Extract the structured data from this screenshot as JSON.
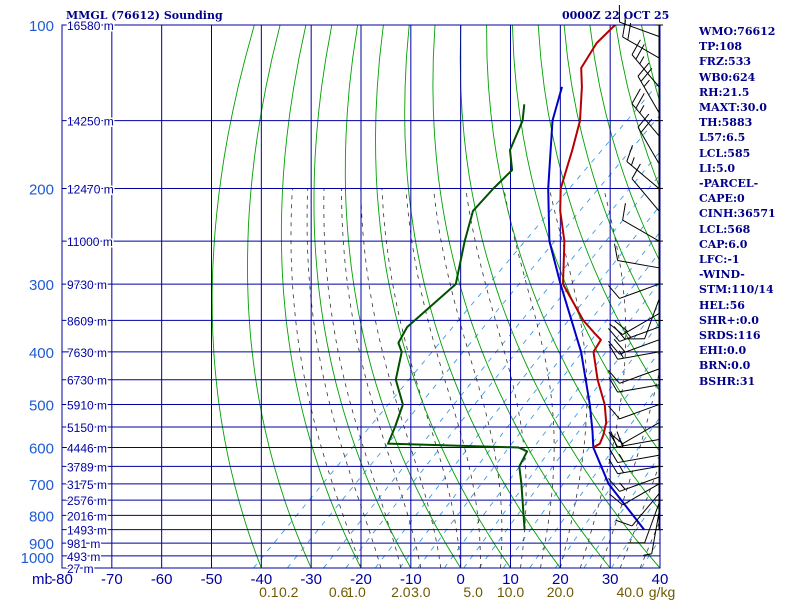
{
  "header": {
    "station": "MMGL (76612) Sounding",
    "time": "0000Z 22 OCT 25"
  },
  "stats": [
    "WMO:76612",
    "TP:108",
    "FRZ:533",
    "WB0:624",
    "RH:21.5",
    "MAXT:30.0",
    "TH:5883",
    "L57:6.5",
    "LCL:585",
    "LI:5.0",
    "-PARCEL-",
    "CAPE:0",
    "CINH:36571",
    "LCL:568",
    "CAP:6.0",
    "LFC:-1",
    "-WIND-",
    "STM:110/14",
    "HEL:56",
    "SHR+:0.0",
    "SRDS:116",
    "EHI:0.0",
    "BRN:0.0",
    "BSHR:31"
  ],
  "colors": {
    "grid": "#0000a0",
    "pressure_labels": "#1e5ad2",
    "dry_adiabat": "#00a000",
    "moist_adiabat": "#333333",
    "mixing_ratio": "#3c9be6",
    "temperature": "#b40000",
    "dewpoint": "#005000",
    "parcel": "#0000c8",
    "mixing_labels": "#6e5a00",
    "wind": "#000000"
  },
  "chart_data": {
    "type": "skew-t",
    "temperature_axis_label": "mb",
    "temperature_ticks": [
      "-80",
      "-70",
      "-60",
      "-50",
      "-40",
      "-30",
      "-20",
      "-10",
      "0",
      "10",
      "20",
      "30",
      "40"
    ],
    "temperature_range": [
      -80,
      40
    ],
    "pressure_range": [
      100,
      1000
    ],
    "pressure_ticks": [
      100,
      200,
      300,
      400,
      500,
      600,
      700,
      800,
      900,
      1000
    ],
    "isobar_levels": [
      100,
      150,
      200,
      250,
      300,
      350,
      400,
      450,
      500,
      550,
      600,
      650,
      700,
      750,
      800,
      850,
      900,
      950,
      1000
    ],
    "height_labels": [
      {
        "p": 100,
        "label": "16580 m"
      },
      {
        "p": 150,
        "label": "14250 m"
      },
      {
        "p": 200,
        "label": "12470 m"
      },
      {
        "p": 250,
        "label": "11000 m"
      },
      {
        "p": 300,
        "label": "9730 m"
      },
      {
        "p": 350,
        "label": "8609 m"
      },
      {
        "p": 400,
        "label": "7630 m"
      },
      {
        "p": 450,
        "label": "6730 m"
      },
      {
        "p": 500,
        "label": "5910 m"
      },
      {
        "p": 550,
        "label": "5150 m"
      },
      {
        "p": 600,
        "label": "4446 m"
      },
      {
        "p": 650,
        "label": "3789 m"
      },
      {
        "p": 700,
        "label": "3175 m"
      },
      {
        "p": 750,
        "label": "2576 m"
      },
      {
        "p": 800,
        "label": "2016 m"
      },
      {
        "p": 850,
        "label": "1493 m"
      },
      {
        "p": 900,
        "label": "981 m"
      },
      {
        "p": 950,
        "label": "493 m"
      },
      {
        "p": 1000,
        "label": "27 m"
      }
    ],
    "mixing_ratio_labels": [
      {
        "value": "0.1",
        "t": -38.5
      },
      {
        "value": "0.2",
        "t": -34.5
      },
      {
        "value": "0.6",
        "t": -24.5
      },
      {
        "value": "1.0",
        "t": -21
      },
      {
        "value": "2.0",
        "t": -12
      },
      {
        "value": "3.0",
        "t": -8
      },
      {
        "value": "5.0",
        "t": 2.5
      },
      {
        "value": "10.0",
        "t": 10
      },
      {
        "value": "20.0",
        "t": 20
      },
      {
        "value": "40.0",
        "t": 34
      }
    ],
    "mixing_units": "g/kg",
    "temperature": [
      {
        "p": 100,
        "t": -80.0
      },
      {
        "p": 108,
        "t": -80.0
      },
      {
        "p": 120,
        "t": -78.0
      },
      {
        "p": 130,
        "t": -74.0
      },
      {
        "p": 150,
        "t": -67.5
      },
      {
        "p": 170,
        "t": -63.0
      },
      {
        "p": 200,
        "t": -57.5
      },
      {
        "p": 220,
        "t": -53.0
      },
      {
        "p": 250,
        "t": -46.0
      },
      {
        "p": 300,
        "t": -37.5
      },
      {
        "p": 350,
        "t": -26.0
      },
      {
        "p": 370,
        "t": -21.0
      },
      {
        "p": 380,
        "t": -18.5
      },
      {
        "p": 400,
        "t": -17.5
      },
      {
        "p": 450,
        "t": -11.0
      },
      {
        "p": 500,
        "t": -4.5
      },
      {
        "p": 540,
        "t": -0.5
      },
      {
        "p": 570,
        "t": 1.5
      },
      {
        "p": 590,
        "t": 2.5
      },
      {
        "p": 600,
        "t": 2.0
      }
    ],
    "dewpoint": [
      {
        "p": 140,
        "t": -82.0
      },
      {
        "p": 150,
        "t": -79.0
      },
      {
        "p": 170,
        "t": -75.5
      },
      {
        "p": 185,
        "t": -71.0
      },
      {
        "p": 200,
        "t": -71.0
      },
      {
        "p": 220,
        "t": -70.5
      },
      {
        "p": 250,
        "t": -66.0
      },
      {
        "p": 300,
        "t": -59.0
      },
      {
        "p": 360,
        "t": -60.0
      },
      {
        "p": 385,
        "t": -58.5
      },
      {
        "p": 400,
        "t": -56.0
      },
      {
        "p": 450,
        "t": -51.5
      },
      {
        "p": 500,
        "t": -45.0
      },
      {
        "p": 550,
        "t": -42.0
      },
      {
        "p": 590,
        "t": -40.0
      },
      {
        "p": 600,
        "t": -13.0
      },
      {
        "p": 610,
        "t": -10.5
      },
      {
        "p": 650,
        "t": -9.0
      },
      {
        "p": 700,
        "t": -5.0
      },
      {
        "p": 850,
        "t": 5.0
      }
    ],
    "parcel": [
      {
        "p": 130,
        "t": -78.0
      },
      {
        "p": 150,
        "t": -73.0
      },
      {
        "p": 200,
        "t": -60.0
      },
      {
        "p": 250,
        "t": -49.0
      },
      {
        "p": 300,
        "t": -38.0
      },
      {
        "p": 400,
        "t": -20.0
      },
      {
        "p": 500,
        "t": -7.5
      },
      {
        "p": 560,
        "t": -1.5
      },
      {
        "p": 600,
        "t": 2.0
      },
      {
        "p": 700,
        "t": 12.5
      },
      {
        "p": 850,
        "t": 29.0
      }
    ],
    "wind_barbs": [
      {
        "p": 105,
        "dir": 290,
        "spd": 15
      },
      {
        "p": 115,
        "dir": 300,
        "spd": 20
      },
      {
        "p": 130,
        "dir": 320,
        "spd": 25
      },
      {
        "p": 145,
        "dir": 330,
        "spd": 25
      },
      {
        "p": 160,
        "dir": 320,
        "spd": 25
      },
      {
        "p": 180,
        "dir": 330,
        "spd": 20
      },
      {
        "p": 200,
        "dir": 310,
        "spd": 15
      },
      {
        "p": 220,
        "dir": 320,
        "spd": 10
      },
      {
        "p": 250,
        "dir": 300,
        "spd": 10
      },
      {
        "p": 280,
        "dir": 280,
        "spd": 10
      },
      {
        "p": 300,
        "dir": 250,
        "spd": 10
      },
      {
        "p": 320,
        "dir": 200,
        "spd": 10
      },
      {
        "p": 340,
        "dir": 240,
        "spd": 20
      },
      {
        "p": 360,
        "dir": 250,
        "spd": 25
      },
      {
        "p": 380,
        "dir": 250,
        "spd": 20
      },
      {
        "p": 400,
        "dir": 260,
        "spd": 15
      },
      {
        "p": 430,
        "dir": 250,
        "spd": 10
      },
      {
        "p": 460,
        "dir": 260,
        "spd": 10
      },
      {
        "p": 500,
        "dir": 250,
        "spd": 10
      },
      {
        "p": 540,
        "dir": 240,
        "spd": 10
      },
      {
        "p": 580,
        "dir": 260,
        "spd": 15
      },
      {
        "p": 600,
        "dir": 270,
        "spd": 20
      },
      {
        "p": 620,
        "dir": 260,
        "spd": 15
      },
      {
        "p": 650,
        "dir": 260,
        "spd": 15
      },
      {
        "p": 680,
        "dir": 250,
        "spd": 15
      },
      {
        "p": 700,
        "dir": 240,
        "spd": 10
      },
      {
        "p": 730,
        "dir": 220,
        "spd": 10
      },
      {
        "p": 760,
        "dir": 200,
        "spd": 10
      },
      {
        "p": 790,
        "dir": 190,
        "spd": 5
      }
    ]
  }
}
